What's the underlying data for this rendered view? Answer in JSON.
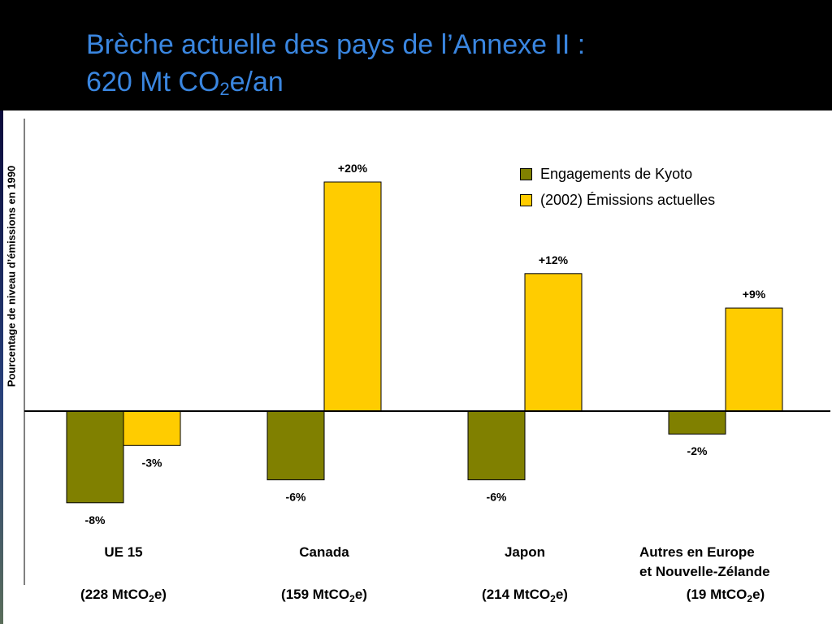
{
  "title": {
    "line1": "Brèche actuelle des pays de l’Annexe II :",
    "line2_pre": "620 Mt CO",
    "line2_sub": "2",
    "line2_post": "e/an"
  },
  "colors": {
    "kyoto": "#808000",
    "emissions": "#ffcc00",
    "title": "#3a86e0"
  },
  "chart_data": {
    "type": "bar",
    "ylabel": "Pourcentage de niveau d’émissions en 1990",
    "ylim": [
      -10,
      25
    ],
    "grid": false,
    "legend_position": "top-right",
    "categories": [
      {
        "name": "UE 15",
        "name2": "",
        "sub_pre": "(228 MtCO",
        "sub_sub": "2",
        "sub_post": "e)"
      },
      {
        "name": "Canada",
        "name2": "",
        "sub_pre": "(159 MtCO",
        "sub_sub": "2",
        "sub_post": "e)"
      },
      {
        "name": "Japon",
        "name2": "",
        "sub_pre": "(214 MtCO",
        "sub_sub": "2",
        "sub_post": "e)"
      },
      {
        "name": "Autres en Europe",
        "name2": "et Nouvelle-Zélande",
        "sub_pre": "(19 MtCO",
        "sub_sub": "2",
        "sub_post": "e)"
      }
    ],
    "series": [
      {
        "name": "Engagements de  Kyoto",
        "values": [
          -8,
          -6,
          -6,
          -2
        ],
        "labels": [
          "-8%",
          "-6%",
          "-6%",
          "-2%"
        ]
      },
      {
        "name": "(2002) Émissions actuelles",
        "values": [
          -3,
          20,
          12,
          9
        ],
        "labels": [
          "-3%",
          "+20%",
          "+12%",
          "+9%"
        ]
      }
    ]
  }
}
